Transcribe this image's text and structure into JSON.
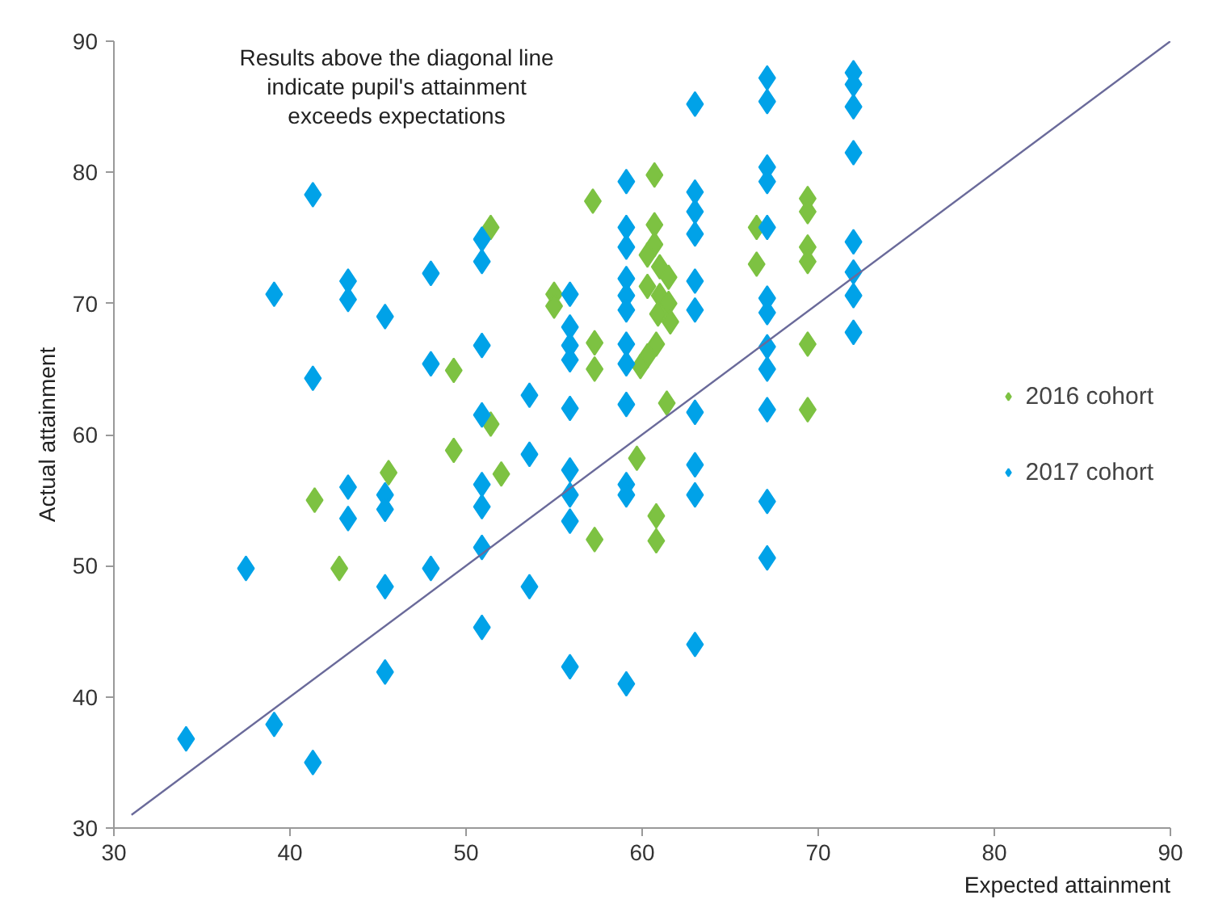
{
  "chart_data": {
    "type": "scatter",
    "xlabel": "Expected attainment",
    "ylabel": "Actual attainment",
    "annotations": [
      "Results above the diagonal line indicate pupil's attainment exceeds expectations"
    ],
    "xlim": [
      30,
      90
    ],
    "ylim": [
      30,
      90
    ],
    "xticks": [
      30,
      40,
      50,
      60,
      70,
      80,
      90
    ],
    "yticks": [
      30,
      40,
      50,
      60,
      70,
      80,
      90
    ],
    "grid": false,
    "legend": "right",
    "marker": "diamond",
    "series": [
      {
        "name": "2016 cohort",
        "color": "#7dc242",
        "x": [
          41.4,
          42.8,
          45.6,
          49.3,
          49.3,
          51.4,
          51.4,
          52.0,
          55.0,
          55.0,
          57.2,
          57.3,
          57.3,
          57.3,
          59.7,
          60.7,
          60.7,
          60.7,
          60.3,
          61.0,
          61.5,
          60.3,
          61.0,
          61.5,
          60.9,
          61.6,
          60.8,
          60.3,
          59.9,
          61.4,
          60.8,
          60.8,
          66.5,
          66.5,
          69.4,
          69.4,
          69.4,
          69.4,
          69.4,
          69.4
        ],
        "values": [
          55.0,
          49.8,
          57.1,
          64.9,
          58.8,
          75.8,
          60.8,
          57.0,
          70.7,
          69.8,
          77.8,
          67.0,
          65.0,
          52.0,
          58.2,
          79.8,
          76.0,
          74.5,
          73.7,
          72.8,
          72.0,
          71.3,
          70.6,
          70.0,
          69.2,
          68.6,
          66.9,
          66.0,
          65.2,
          62.4,
          53.8,
          51.9,
          75.8,
          73.0,
          78.0,
          77.0,
          74.3,
          73.2,
          66.9,
          61.9
        ]
      },
      {
        "name": "2017 cohort",
        "color": "#00a2e8",
        "x": [
          34.1,
          37.5,
          39.1,
          39.1,
          41.3,
          41.3,
          41.3,
          43.3,
          43.3,
          43.3,
          43.3,
          45.4,
          45.4,
          45.4,
          45.4,
          45.4,
          48.0,
          48.0,
          48.0,
          50.9,
          50.9,
          50.9,
          50.9,
          50.9,
          50.9,
          50.9,
          50.9,
          53.6,
          53.6,
          53.6,
          55.9,
          55.9,
          55.9,
          55.9,
          55.9,
          55.9,
          55.9,
          55.9,
          55.9,
          59.1,
          59.1,
          59.1,
          59.1,
          59.1,
          59.1,
          59.1,
          59.1,
          59.1,
          59.1,
          59.1,
          59.1,
          63.0,
          63.0,
          63.0,
          63.0,
          63.0,
          63.0,
          63.0,
          63.0,
          63.0,
          63.0,
          67.1,
          67.1,
          67.1,
          67.1,
          67.1,
          67.1,
          67.1,
          67.1,
          67.1,
          67.1,
          67.1,
          67.1,
          72.0,
          72.0,
          72.0,
          72.0,
          72.0,
          72.0,
          72.0,
          72.0
        ],
        "values": [
          36.8,
          49.8,
          37.9,
          70.7,
          78.3,
          64.3,
          35.0,
          71.7,
          70.3,
          56.0,
          53.6,
          69.0,
          55.4,
          54.3,
          48.4,
          41.9,
          72.3,
          65.4,
          49.8,
          74.9,
          73.2,
          66.8,
          61.5,
          56.2,
          54.5,
          51.4,
          45.3,
          63.0,
          58.5,
          48.4,
          70.7,
          68.2,
          66.8,
          65.7,
          62.0,
          57.3,
          55.4,
          53.4,
          42.3,
          79.3,
          75.8,
          74.3,
          71.9,
          70.6,
          69.5,
          66.9,
          65.4,
          62.3,
          56.2,
          55.4,
          41.0,
          85.2,
          78.5,
          77.0,
          75.3,
          71.7,
          69.5,
          61.7,
          57.7,
          55.4,
          44.0,
          87.2,
          85.4,
          80.4,
          79.3,
          75.8,
          70.4,
          69.3,
          66.7,
          65.0,
          61.9,
          54.9,
          50.6,
          87.6,
          86.7,
          85.0,
          81.5,
          74.7,
          72.4,
          70.6,
          67.8
        ]
      },
      {
        "type": "line",
        "color": "#6a6a9a",
        "x": [
          31,
          90
        ],
        "values": [
          31,
          90
        ],
        "marker": "none"
      }
    ]
  }
}
